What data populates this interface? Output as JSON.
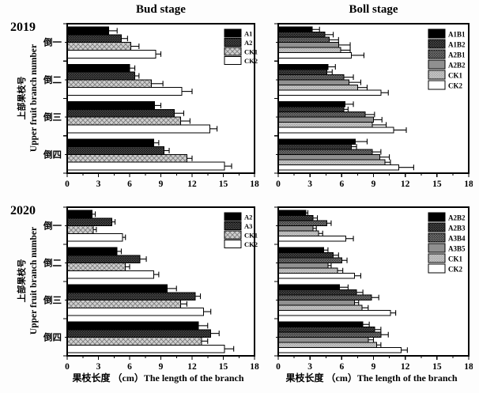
{
  "figure": {
    "column_titles": [
      "Bud stage",
      "Boll stage"
    ],
    "row_years": [
      "2019",
      "2020"
    ],
    "y_axis_label_zh": "上部果枝号",
    "y_axis_label_en": "Upper fruit branch number",
    "x_axis_label": "果枝长度 （cm）The length of the branch"
  },
  "palette": {
    "black": "#000000",
    "dark_gray": "#454545",
    "medium_gray": "#6f6f6f",
    "plain_gray": "#909090",
    "light_gray_cross": "#cfcfcf",
    "light_gray": "#c6c6c6",
    "white": "#ffffff",
    "stroke": "#000000"
  },
  "chart_data": [
    {
      "type": "bar",
      "orientation": "horizontal",
      "year": "2019",
      "stage": "Bud stage",
      "categories": [
        "倒一",
        "倒二",
        "倒三",
        "倒四"
      ],
      "xlim": [
        0,
        18
      ],
      "xticks": [
        0,
        3,
        6,
        9,
        12,
        15,
        18
      ],
      "xlabel": "",
      "legend_position": "upper-right",
      "grid": false,
      "series": [
        {
          "name": "A1",
          "fill": "black",
          "values": [
            4.0,
            6.0,
            8.4,
            8.3
          ],
          "errors": [
            0.8,
            0.5,
            0.6,
            0.5
          ]
        },
        {
          "name": "A2",
          "fill": "dot-dark",
          "values": [
            5.2,
            6.5,
            10.3,
            9.3
          ],
          "errors": [
            0.6,
            0.4,
            0.9,
            0.5
          ]
        },
        {
          "name": "CK1",
          "fill": "cross-light",
          "values": [
            6.1,
            8.1,
            10.9,
            11.5
          ],
          "errors": [
            0.8,
            1.1,
            0.9,
            0.5
          ]
        },
        {
          "name": "CK2",
          "fill": "white",
          "values": [
            8.5,
            11.0,
            13.7,
            15.1
          ],
          "errors": [
            0.5,
            1.0,
            0.7,
            0.7
          ]
        }
      ]
    },
    {
      "type": "bar",
      "orientation": "horizontal",
      "year": "2019",
      "stage": "Boll stage",
      "categories": [
        "倒一",
        "倒二",
        "倒三",
        "倒四"
      ],
      "xlim": [
        0,
        18
      ],
      "xticks": [
        0,
        3,
        6,
        9,
        12,
        15,
        18
      ],
      "xlabel": "",
      "legend_position": "upper-right",
      "grid": false,
      "series": [
        {
          "name": "A1B1",
          "fill": "black",
          "values": [
            3.2,
            4.7,
            6.3,
            7.3
          ],
          "errors": [
            0.7,
            0.7,
            0.8,
            1.1
          ]
        },
        {
          "name": "A1B2",
          "fill": "dot-dark",
          "values": [
            4.4,
            4.6,
            6.2,
            6.9
          ],
          "errors": [
            0.8,
            0.5,
            0.4,
            0.5
          ]
        },
        {
          "name": "A2B1",
          "fill": "dot-med",
          "values": [
            4.8,
            6.2,
            8.2,
            8.9
          ],
          "errors": [
            0.9,
            0.9,
            0.9,
            0.8
          ]
        },
        {
          "name": "A2B2",
          "fill": "gray-med",
          "values": [
            5.7,
            6.7,
            9.0,
            9.6
          ],
          "errors": [
            1.1,
            1.1,
            0.8,
            0.9
          ]
        },
        {
          "name": "CK1",
          "fill": "gray-light",
          "values": [
            5.9,
            7.5,
            8.9,
            10.1
          ],
          "errors": [
            0.9,
            0.9,
            1.3,
            0.5
          ]
        },
        {
          "name": "CK2",
          "fill": "white",
          "values": [
            6.9,
            9.7,
            10.9,
            11.4
          ],
          "errors": [
            1.2,
            0.7,
            1.2,
            1.4
          ]
        }
      ]
    },
    {
      "type": "bar",
      "orientation": "horizontal",
      "year": "2020",
      "stage": "Bud stage",
      "categories": [
        "倒一",
        "倒二",
        "倒三",
        "倒四"
      ],
      "xlim": [
        0,
        18
      ],
      "xticks": [
        0,
        3,
        6,
        9,
        12,
        15,
        18
      ],
      "xlabel": "果枝长度 （cm）The length of the branch",
      "legend_position": "upper-right",
      "grid": false,
      "series": [
        {
          "name": "A2",
          "fill": "black",
          "values": [
            2.4,
            4.8,
            9.6,
            12.6
          ],
          "errors": [
            0.3,
            0.4,
            0.9,
            0.9
          ]
        },
        {
          "name": "A3",
          "fill": "dot-dark",
          "values": [
            4.3,
            7.0,
            12.3,
            13.8
          ],
          "errors": [
            0.3,
            0.6,
            0.5,
            0.8
          ]
        },
        {
          "name": "CK1",
          "fill": "cross-light",
          "values": [
            2.5,
            5.6,
            10.9,
            12.9
          ],
          "errors": [
            0.3,
            0.4,
            0.6,
            0.6
          ]
        },
        {
          "name": "CK2",
          "fill": "white",
          "values": [
            5.3,
            8.3,
            13.1,
            15.1
          ],
          "errors": [
            0.3,
            0.5,
            0.7,
            0.9
          ]
        }
      ]
    },
    {
      "type": "bar",
      "orientation": "horizontal",
      "year": "2020",
      "stage": "Boll stage",
      "categories": [
        "倒一",
        "倒二",
        "倒三",
        "倒四"
      ],
      "xlim": [
        0,
        18
      ],
      "xticks": [
        0,
        3,
        6,
        9,
        12,
        15,
        18
      ],
      "xlabel": "果枝长度 （cm）The length of the branch",
      "legend_position": "upper-right",
      "grid": false,
      "series": [
        {
          "name": "A2B2",
          "fill": "black",
          "values": [
            2.6,
            4.3,
            5.8,
            8.0
          ],
          "errors": [
            0.2,
            0.4,
            0.8,
            0.6
          ]
        },
        {
          "name": "A2B3",
          "fill": "dot-dark",
          "values": [
            3.3,
            5.2,
            7.4,
            9.1
          ],
          "errors": [
            0.4,
            0.5,
            0.6,
            0.6
          ]
        },
        {
          "name": "A3B4",
          "fill": "dot-med",
          "values": [
            4.6,
            6.0,
            8.8,
            9.7
          ],
          "errors": [
            0.4,
            0.5,
            0.7,
            0.7
          ]
        },
        {
          "name": "A3B5",
          "fill": "gray-med",
          "values": [
            3.3,
            4.7,
            7.2,
            8.5
          ],
          "errors": [
            0.3,
            0.3,
            0.4,
            0.5
          ]
        },
        {
          "name": "CK1",
          "fill": "gray-light",
          "values": [
            3.8,
            5.6,
            7.9,
            9.3
          ],
          "errors": [
            0.4,
            0.5,
            0.6,
            0.4
          ]
        },
        {
          "name": "CK2",
          "fill": "white",
          "values": [
            6.4,
            7.2,
            10.6,
            11.6
          ],
          "errors": [
            0.7,
            0.6,
            0.5,
            0.6
          ]
        }
      ]
    }
  ]
}
